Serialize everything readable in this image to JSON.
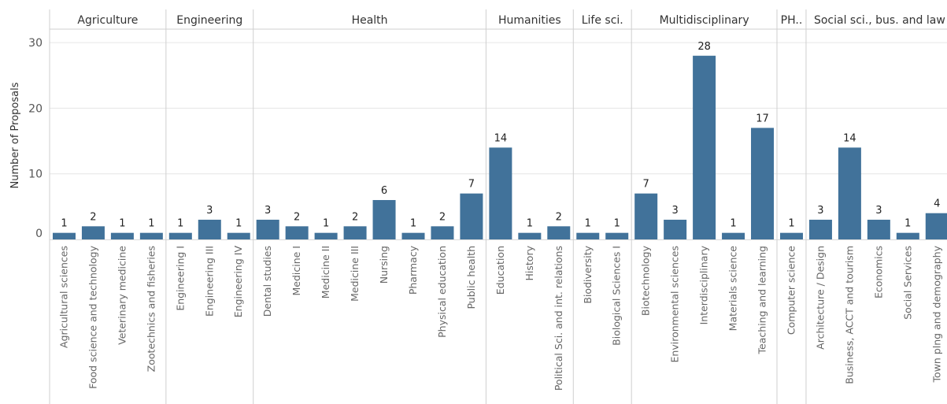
{
  "chart_data": {
    "type": "bar",
    "ylabel": "Number of Proposals",
    "ylim": [
      0,
      31
    ],
    "yticks": [
      0,
      10,
      20,
      30
    ],
    "grid": true,
    "bar_color": "#41729a",
    "groups": [
      {
        "name": "Agriculture",
        "categories": [
          {
            "label": "Agricultural sciences",
            "value": 1
          },
          {
            "label": "Food science and technology",
            "value": 2
          },
          {
            "label": "Veterinary medicine",
            "value": 1
          },
          {
            "label": "Zootechnics and fisheries",
            "value": 1
          }
        ]
      },
      {
        "name": "Engineering",
        "categories": [
          {
            "label": "Engineering I",
            "value": 1
          },
          {
            "label": "Engineering III",
            "value": 3
          },
          {
            "label": "Engineering IV",
            "value": 1
          }
        ]
      },
      {
        "name": "Health",
        "categories": [
          {
            "label": "Dental studies",
            "value": 3
          },
          {
            "label": "Medicine I",
            "value": 2
          },
          {
            "label": "Medicine II",
            "value": 1
          },
          {
            "label": "Medicine III",
            "value": 2
          },
          {
            "label": "Nursing",
            "value": 6
          },
          {
            "label": "Pharmacy",
            "value": 1
          },
          {
            "label": "Physical education",
            "value": 2
          },
          {
            "label": "Public health",
            "value": 7
          }
        ]
      },
      {
        "name": "Humanities",
        "categories": [
          {
            "label": "Education",
            "value": 14
          },
          {
            "label": "History",
            "value": 1
          },
          {
            "label": "Political Sci. and int. relations",
            "value": 2
          }
        ]
      },
      {
        "name": "Life sci.",
        "categories": [
          {
            "label": "Biodiversity",
            "value": 1
          },
          {
            "label": "Biological Sciences I",
            "value": 1
          }
        ]
      },
      {
        "name": "Multidisciplinary",
        "categories": [
          {
            "label": "Biotechnology",
            "value": 7
          },
          {
            "label": "Environmental sciences",
            "value": 3
          },
          {
            "label": "Interdisciplinary",
            "value": 28
          },
          {
            "label": "Materials science",
            "value": 1
          },
          {
            "label": "Teaching and learning",
            "value": 17
          }
        ]
      },
      {
        "name": "PH..",
        "categories": [
          {
            "label": "Computer science",
            "value": 1
          }
        ]
      },
      {
        "name": "Social sci., bus. and law",
        "categories": [
          {
            "label": "Architecture / Design",
            "value": 3
          },
          {
            "label": "Business, ACCT and tourism",
            "value": 14
          },
          {
            "label": "Economics",
            "value": 3
          },
          {
            "label": "Social Services",
            "value": 1
          },
          {
            "label": "Town plng and demography",
            "value": 4
          }
        ]
      }
    ]
  }
}
